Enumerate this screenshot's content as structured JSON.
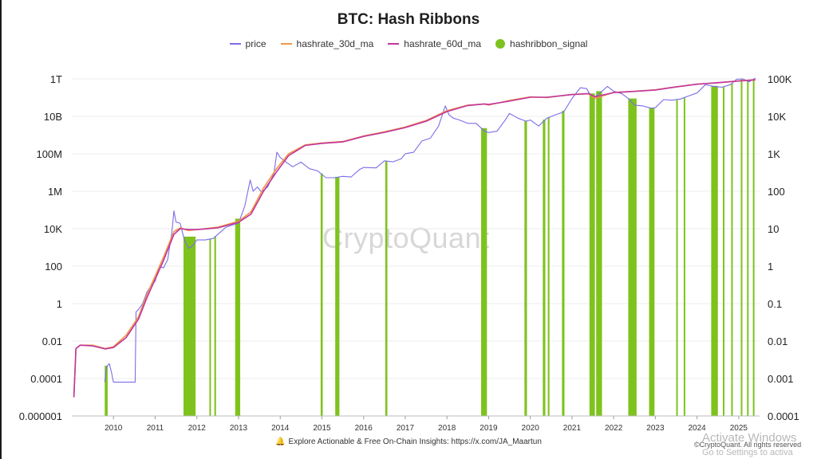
{
  "title": "BTC: Hash Ribbons",
  "legend": [
    {
      "label": "price",
      "color": "#7b6ee8",
      "shape": "line"
    },
    {
      "label": "hashrate_30d_ma",
      "color": "#f0954a",
      "shape": "line"
    },
    {
      "label": "hashrate_60d_ma",
      "color": "#c0369c",
      "shape": "line"
    },
    {
      "label": "hashribbon_signal",
      "color": "#7ec31d",
      "shape": "dot"
    }
  ],
  "watermark": "CryptoQuant",
  "footer": {
    "text": "Explore Actionable & Free On-Chain Insights: https://x.com/JA_Maartun",
    "icon": "bell-icon"
  },
  "copyright": "©CryptoQuant. All rights reserved",
  "overlay": {
    "line1": "Activate Windows",
    "line2": "Go to Settings to activa"
  },
  "chart_data": {
    "type": "line",
    "title": "BTC: Hash Ribbons",
    "x_ticks": [
      "2010",
      "2011",
      "2012",
      "2013",
      "2014",
      "2015",
      "2016",
      "2017",
      "2018",
      "2019",
      "2020",
      "2021",
      "2022",
      "2023",
      "2024",
      "2025"
    ],
    "x_range": [
      2009.0,
      2025.5
    ],
    "y_left_ticks": [
      "1T",
      "10B",
      "100M",
      "1M",
      "10K",
      "100",
      "1",
      "0.01",
      "0.0001",
      "0.000001"
    ],
    "y_left_range_log10": [
      -6,
      12
    ],
    "y_left_scale": "log",
    "y_right_ticks": [
      "100K",
      "10K",
      "1K",
      "100",
      "10",
      "1",
      "0.1",
      "0.01",
      "0.001",
      "0.0001"
    ],
    "y_right_range_log10": [
      -4,
      5
    ],
    "y_right_scale": "log",
    "grid": "horizontal",
    "legend_position": "top-center",
    "series": [
      {
        "name": "price",
        "axis": "right",
        "color": "#7b6ee8",
        "points": [
          [
            2009.79,
            0.0008
          ],
          [
            2009.83,
            0.002
          ],
          [
            2009.9,
            0.0025
          ],
          [
            2009.95,
            0.0015
          ],
          [
            2010.0,
            0.0008
          ],
          [
            2010.05,
            0.0008
          ],
          [
            2010.3,
            0.0008
          ],
          [
            2010.52,
            0.0008
          ],
          [
            2010.54,
            0.06
          ],
          [
            2010.6,
            0.07
          ],
          [
            2010.7,
            0.1
          ],
          [
            2010.8,
            0.2
          ],
          [
            2010.9,
            0.3
          ],
          [
            2011.0,
            0.4
          ],
          [
            2011.1,
            1.0
          ],
          [
            2011.2,
            0.9
          ],
          [
            2011.3,
            1.5
          ],
          [
            2011.4,
            8
          ],
          [
            2011.45,
            30
          ],
          [
            2011.5,
            15
          ],
          [
            2011.6,
            14
          ],
          [
            2011.7,
            5
          ],
          [
            2011.8,
            3
          ],
          [
            2011.9,
            3.5
          ],
          [
            2012.0,
            5
          ],
          [
            2012.2,
            5
          ],
          [
            2012.4,
            5.5
          ],
          [
            2012.5,
            7
          ],
          [
            2012.7,
            11
          ],
          [
            2012.9,
            13
          ],
          [
            2013.0,
            14
          ],
          [
            2013.15,
            40
          ],
          [
            2013.28,
            200
          ],
          [
            2013.35,
            100
          ],
          [
            2013.45,
            130
          ],
          [
            2013.55,
            95
          ],
          [
            2013.7,
            130
          ],
          [
            2013.85,
            300
          ],
          [
            2013.92,
            1100
          ],
          [
            2014.0,
            800
          ],
          [
            2014.1,
            650
          ],
          [
            2014.3,
            450
          ],
          [
            2014.5,
            600
          ],
          [
            2014.7,
            400
          ],
          [
            2014.9,
            350
          ],
          [
            2015.0,
            280
          ],
          [
            2015.1,
            230
          ],
          [
            2015.3,
            230
          ],
          [
            2015.5,
            250
          ],
          [
            2015.7,
            240
          ],
          [
            2015.9,
            380
          ],
          [
            2016.0,
            430
          ],
          [
            2016.3,
            420
          ],
          [
            2016.5,
            650
          ],
          [
            2016.7,
            610
          ],
          [
            2016.9,
            730
          ],
          [
            2017.0,
            1000
          ],
          [
            2017.2,
            1100
          ],
          [
            2017.4,
            2200
          ],
          [
            2017.6,
            2600
          ],
          [
            2017.8,
            5500
          ],
          [
            2017.96,
            19000
          ],
          [
            2018.05,
            11000
          ],
          [
            2018.15,
            9000
          ],
          [
            2018.3,
            8000
          ],
          [
            2018.5,
            6500
          ],
          [
            2018.7,
            6500
          ],
          [
            2018.9,
            4000
          ],
          [
            2019.0,
            3700
          ],
          [
            2019.2,
            4000
          ],
          [
            2019.4,
            8000
          ],
          [
            2019.5,
            12000
          ],
          [
            2019.7,
            9000
          ],
          [
            2019.9,
            7400
          ],
          [
            2020.0,
            8000
          ],
          [
            2020.2,
            5500
          ],
          [
            2020.4,
            9000
          ],
          [
            2020.6,
            11000
          ],
          [
            2020.8,
            13000
          ],
          [
            2021.0,
            30000
          ],
          [
            2021.2,
            58000
          ],
          [
            2021.35,
            55000
          ],
          [
            2021.45,
            36000
          ],
          [
            2021.55,
            33000
          ],
          [
            2021.7,
            45000
          ],
          [
            2021.85,
            63000
          ],
          [
            2022.0,
            47000
          ],
          [
            2022.2,
            40000
          ],
          [
            2022.35,
            30000
          ],
          [
            2022.5,
            20000
          ],
          [
            2022.7,
            19000
          ],
          [
            2022.9,
            16500
          ],
          [
            2023.0,
            17000
          ],
          [
            2023.2,
            28000
          ],
          [
            2023.4,
            27000
          ],
          [
            2023.6,
            29000
          ],
          [
            2023.8,
            35000
          ],
          [
            2024.0,
            42000
          ],
          [
            2024.2,
            70000
          ],
          [
            2024.4,
            63000
          ],
          [
            2024.6,
            60000
          ],
          [
            2024.8,
            70000
          ],
          [
            2024.95,
            98000
          ],
          [
            2025.1,
            100000
          ],
          [
            2025.25,
            84000
          ],
          [
            2025.4,
            105000
          ]
        ]
      },
      {
        "name": "hashrate_30d_ma",
        "axis": "left",
        "color": "#f0954a",
        "points": [
          [
            2009.05,
            1e-05
          ],
          [
            2009.1,
            0.004
          ],
          [
            2009.2,
            0.006
          ],
          [
            2009.5,
            0.006
          ],
          [
            2009.8,
            0.004
          ],
          [
            2010.0,
            0.005
          ],
          [
            2010.3,
            0.02
          ],
          [
            2010.6,
            0.2
          ],
          [
            2010.8,
            3
          ],
          [
            2011.0,
            30
          ],
          [
            2011.2,
            300
          ],
          [
            2011.45,
            7000
          ],
          [
            2011.6,
            11000
          ],
          [
            2011.8,
            8000
          ],
          [
            2012.0,
            9000
          ],
          [
            2012.5,
            12000
          ],
          [
            2013.0,
            25000
          ],
          [
            2013.3,
            80000
          ],
          [
            2013.6,
            1500000
          ],
          [
            2013.9,
            15000000
          ],
          [
            2014.2,
            100000000
          ],
          [
            2014.6,
            300000000
          ],
          [
            2015.0,
            380000000
          ],
          [
            2015.5,
            450000000
          ],
          [
            2016.0,
            900000000
          ],
          [
            2016.5,
            1500000000
          ],
          [
            2017.0,
            2700000000
          ],
          [
            2017.5,
            6000000000
          ],
          [
            2018.0,
            20000000000
          ],
          [
            2018.5,
            40000000000
          ],
          [
            2018.9,
            45000000000
          ],
          [
            2019.0,
            40000000000
          ],
          [
            2019.5,
            70000000000
          ],
          [
            2020.0,
            110000000000
          ],
          [
            2020.4,
            100000000000
          ],
          [
            2021.0,
            150000000000
          ],
          [
            2021.4,
            160000000000
          ],
          [
            2021.55,
            90000000000
          ],
          [
            2022.0,
            190000000000
          ],
          [
            2022.5,
            220000000000
          ],
          [
            2023.0,
            260000000000
          ],
          [
            2023.5,
            380000000000
          ],
          [
            2024.0,
            530000000000
          ],
          [
            2024.5,
            620000000000
          ],
          [
            2025.0,
            790000000000
          ],
          [
            2025.4,
            900000000000
          ]
        ]
      },
      {
        "name": "hashrate_60d_ma",
        "axis": "left",
        "color": "#c0369c",
        "points": [
          [
            2009.05,
            1e-05
          ],
          [
            2009.1,
            0.004
          ],
          [
            2009.2,
            0.006
          ],
          [
            2009.5,
            0.0055
          ],
          [
            2009.8,
            0.0038
          ],
          [
            2010.0,
            0.0045
          ],
          [
            2010.3,
            0.015
          ],
          [
            2010.6,
            0.15
          ],
          [
            2010.8,
            2
          ],
          [
            2011.0,
            20
          ],
          [
            2011.2,
            200
          ],
          [
            2011.45,
            5000
          ],
          [
            2011.6,
            10000
          ],
          [
            2011.8,
            9000
          ],
          [
            2012.0,
            9000
          ],
          [
            2012.5,
            11000
          ],
          [
            2013.0,
            22000
          ],
          [
            2013.3,
            60000
          ],
          [
            2013.6,
            1000000
          ],
          [
            2013.9,
            10000000
          ],
          [
            2014.2,
            80000000
          ],
          [
            2014.6,
            280000000
          ],
          [
            2015.0,
            360000000
          ],
          [
            2015.5,
            430000000
          ],
          [
            2016.0,
            850000000
          ],
          [
            2016.5,
            1400000000
          ],
          [
            2017.0,
            2500000000
          ],
          [
            2017.5,
            5500000000
          ],
          [
            2018.0,
            18000000000
          ],
          [
            2018.5,
            38000000000
          ],
          [
            2018.9,
            46000000000
          ],
          [
            2019.0,
            43000000000
          ],
          [
            2019.5,
            65000000000
          ],
          [
            2020.0,
            105000000000
          ],
          [
            2020.4,
            105000000000
          ],
          [
            2021.0,
            145000000000
          ],
          [
            2021.4,
            165000000000
          ],
          [
            2021.55,
            110000000000
          ],
          [
            2022.0,
            185000000000
          ],
          [
            2022.5,
            215000000000
          ],
          [
            2023.0,
            255000000000
          ],
          [
            2023.5,
            370000000000
          ],
          [
            2024.0,
            520000000000
          ],
          [
            2024.5,
            630000000000
          ],
          [
            2025.0,
            770000000000
          ],
          [
            2025.4,
            890000000000
          ]
        ]
      }
    ],
    "hashribbon_signal_periods": [
      [
        2009.79,
        2009.86
      ],
      [
        2011.68,
        2011.97
      ],
      [
        2012.3,
        2012.32
      ],
      [
        2012.42,
        2012.46
      ],
      [
        2012.92,
        2013.04
      ],
      [
        2014.97,
        2015.02
      ],
      [
        2015.32,
        2015.42
      ],
      [
        2016.52,
        2016.57
      ],
      [
        2018.82,
        2018.96
      ],
      [
        2019.86,
        2019.92
      ],
      [
        2020.3,
        2020.36
      ],
      [
        2020.42,
        2020.46
      ],
      [
        2020.76,
        2020.82
      ],
      [
        2021.42,
        2021.55
      ],
      [
        2021.58,
        2021.72
      ],
      [
        2022.35,
        2022.55
      ],
      [
        2022.85,
        2022.98
      ],
      [
        2023.5,
        2023.53
      ],
      [
        2023.68,
        2023.71
      ],
      [
        2024.34,
        2024.5
      ],
      [
        2024.62,
        2024.65
      ],
      [
        2024.82,
        2024.84
      ],
      [
        2025.05,
        2025.07
      ],
      [
        2025.2,
        2025.23
      ],
      [
        2025.34,
        2025.37
      ]
    ],
    "hashribbon_signal_color": "#7ec31d"
  }
}
